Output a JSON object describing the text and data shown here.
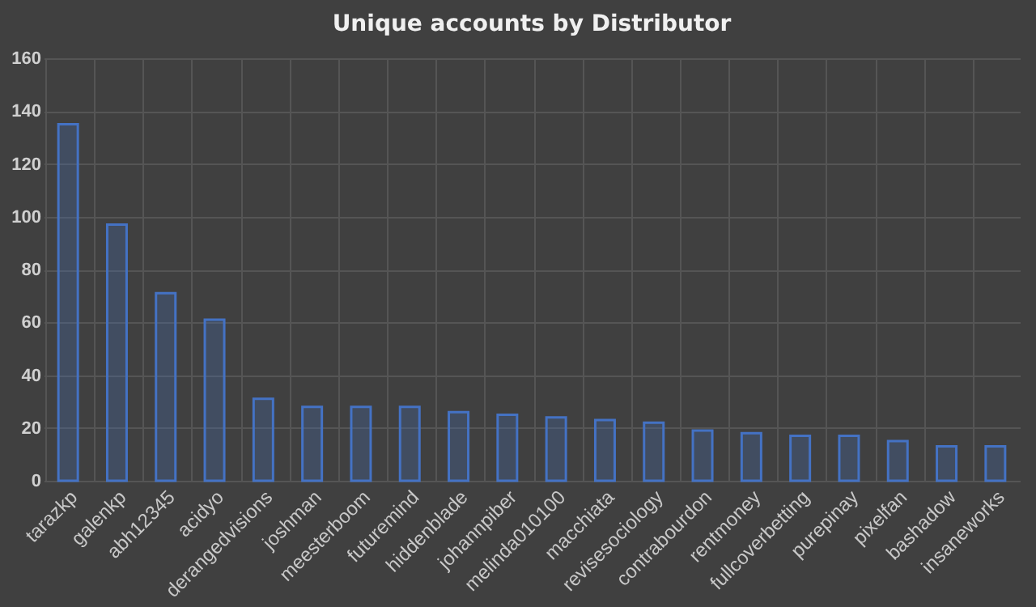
{
  "chart_data": {
    "type": "bar",
    "title": "Unique accounts by Distributor",
    "categories": [
      "tarazkp",
      "galenkp",
      "abh12345",
      "acidyo",
      "derangedvisions",
      "joshman",
      "meesterboom",
      "futuremind",
      "hiddenblade",
      "johannpiber",
      "melinda010100",
      "macchiata",
      "revisesociology",
      "contrabourdon",
      "rentmoney",
      "fullcoverbetting",
      "purepinay",
      "pixelfan",
      "bashadow",
      "insaneworks"
    ],
    "values": [
      135,
      97,
      71,
      61,
      31,
      28,
      28,
      28,
      26,
      25,
      24,
      23,
      22,
      19,
      18,
      17,
      17,
      15,
      13,
      13
    ],
    "color": "#4472c4",
    "ylim": [
      0,
      160
    ],
    "yticks": [
      0,
      20,
      40,
      60,
      80,
      100,
      120,
      140,
      160
    ],
    "grid": true
  }
}
